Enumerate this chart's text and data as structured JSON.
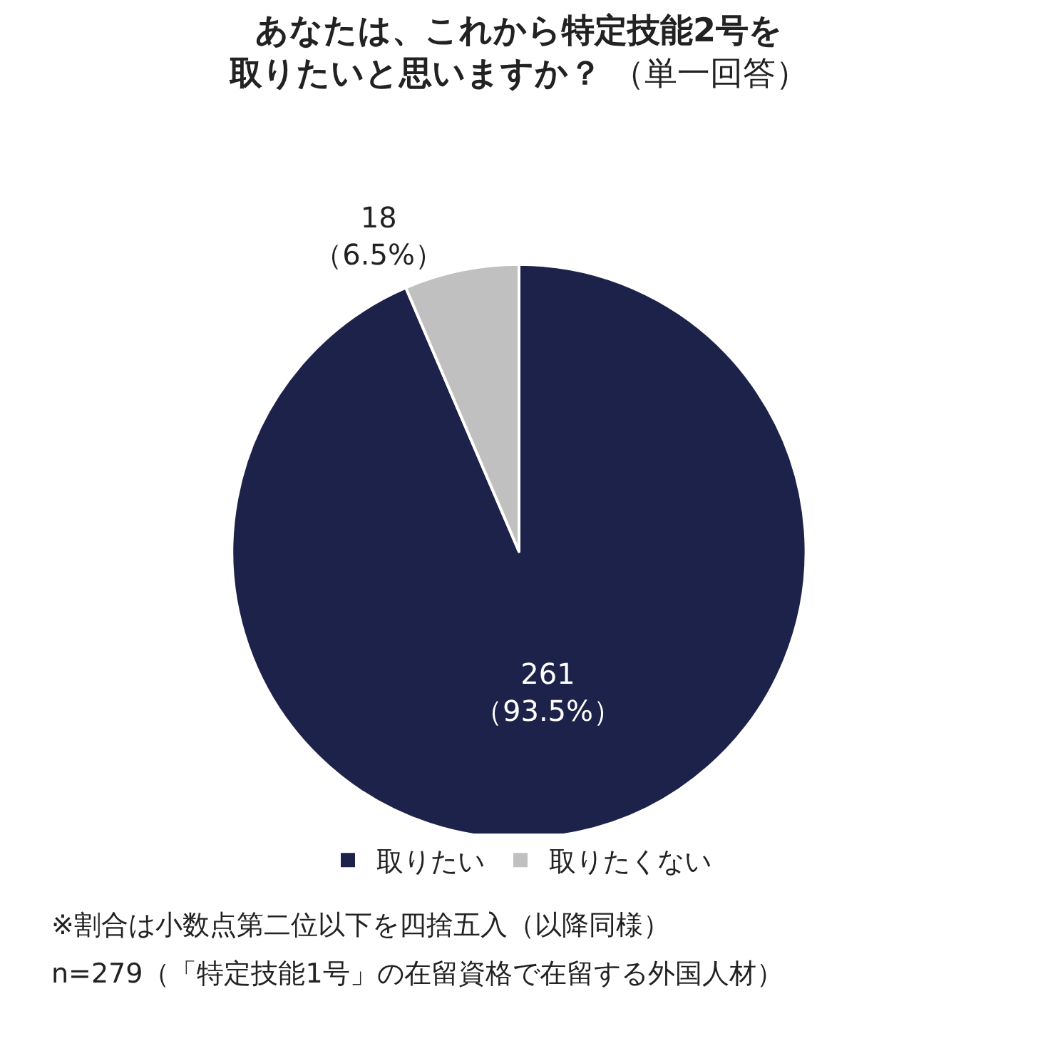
{
  "chart_data": {
    "type": "pie",
    "title": "あなたは、これから特定技能2号を取りたいと思いますか？",
    "subtitle": "（単一回答）",
    "categories": [
      "取りたい",
      "取りたくない"
    ],
    "values": [
      261,
      18
    ],
    "colors": [
      "#1c2249",
      "#c0c0c0"
    ],
    "value_labels": [
      "261\n（93.5%）",
      "18\n（6.5%）"
    ],
    "legend": "bottom",
    "annotations": [
      "※割合は小数点第二位以下を四捨五入（以降同様）",
      "n=279（「特定技能1号」の在留資格で在留する外国人材）"
    ]
  }
}
